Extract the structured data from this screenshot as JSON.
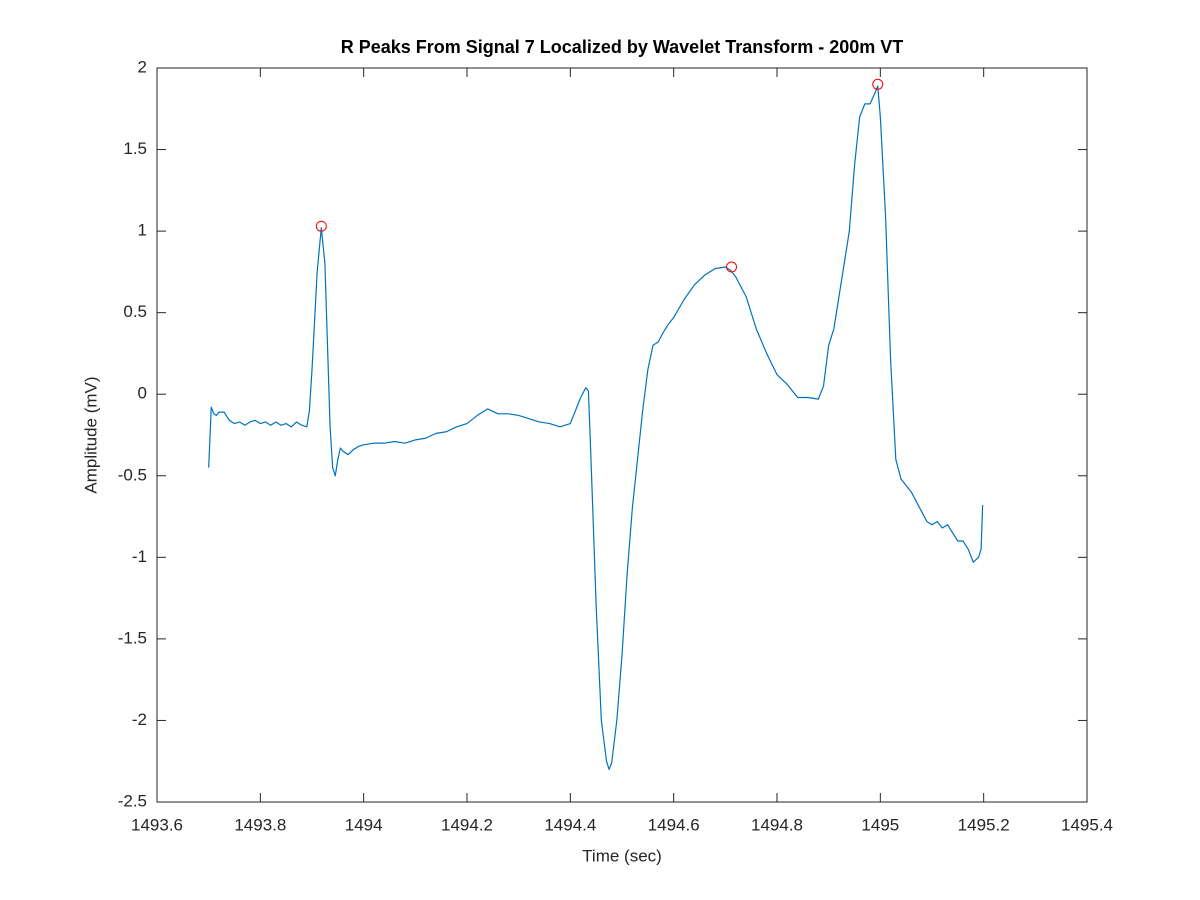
{
  "chart_data": {
    "type": "line",
    "title": "R Peaks From Signal 7 Localized by Wavelet Transform - 200m VT",
    "x_label": "Time (sec)",
    "y_label": "Amplitude (mV)",
    "xlim": [
      1493.6,
      1495.4
    ],
    "xticks": [
      1493.6,
      1493.8,
      1494,
      1494.2,
      1494.4,
      1494.6,
      1494.8,
      1495,
      1495.2,
      1495.4
    ],
    "ylim": [
      -2.5,
      2
    ],
    "yticks": [
      -2.5,
      -2,
      -1.5,
      -1,
      -0.5,
      0,
      0.5,
      1,
      1.5,
      2
    ],
    "grid": false,
    "series": [
      {
        "color": "#0072bd",
        "style": "line",
        "x": [
          1493.7,
          1493.705,
          1493.71,
          1493.715,
          1493.72,
          1493.73,
          1493.74,
          1493.75,
          1493.76,
          1493.77,
          1493.78,
          1493.79,
          1493.8,
          1493.81,
          1493.82,
          1493.83,
          1493.84,
          1493.85,
          1493.86,
          1493.87,
          1493.88,
          1493.89,
          1493.895,
          1493.9,
          1493.91,
          1493.918,
          1493.925,
          1493.93,
          1493.935,
          1493.94,
          1493.945,
          1493.95,
          1493.955,
          1493.96,
          1493.97,
          1493.98,
          1493.99,
          1494,
          1494.02,
          1494.04,
          1494.06,
          1494.08,
          1494.1,
          1494.12,
          1494.14,
          1494.16,
          1494.18,
          1494.2,
          1494.22,
          1494.24,
          1494.26,
          1494.28,
          1494.3,
          1494.32,
          1494.34,
          1494.36,
          1494.38,
          1494.4,
          1494.41,
          1494.42,
          1494.43,
          1494.435,
          1494.44,
          1494.45,
          1494.46,
          1494.47,
          1494.475,
          1494.48,
          1494.49,
          1494.5,
          1494.51,
          1494.52,
          1494.53,
          1494.54,
          1494.55,
          1494.56,
          1494.57,
          1494.58,
          1494.59,
          1494.6,
          1494.62,
          1494.64,
          1494.66,
          1494.68,
          1494.7,
          1494.71,
          1494.72,
          1494.74,
          1494.76,
          1494.78,
          1494.8,
          1494.82,
          1494.84,
          1494.86,
          1494.88,
          1494.89,
          1494.9,
          1494.91,
          1494.92,
          1494.93,
          1494.94,
          1494.95,
          1494.96,
          1494.97,
          1494.98,
          1494.99,
          1494.995,
          1495,
          1495.01,
          1495.02,
          1495.03,
          1495.04,
          1495.06,
          1495.08,
          1495.09,
          1495.1,
          1495.11,
          1495.12,
          1495.13,
          1495.14,
          1495.15,
          1495.16,
          1495.17,
          1495.18,
          1495.19,
          1495.195,
          1495.198
        ],
        "values": [
          -0.45,
          -0.08,
          -0.12,
          -0.13,
          -0.11,
          -0.11,
          -0.16,
          -0.18,
          -0.17,
          -0.19,
          -0.17,
          -0.16,
          -0.18,
          -0.17,
          -0.19,
          -0.17,
          -0.19,
          -0.18,
          -0.2,
          -0.17,
          -0.19,
          -0.2,
          -0.1,
          0.15,
          0.75,
          1.02,
          0.8,
          0.3,
          -0.2,
          -0.45,
          -0.5,
          -0.4,
          -0.33,
          -0.35,
          -0.37,
          -0.34,
          -0.32,
          -0.31,
          -0.3,
          -0.3,
          -0.29,
          -0.3,
          -0.28,
          -0.27,
          -0.24,
          -0.23,
          -0.2,
          -0.18,
          -0.13,
          -0.09,
          -0.12,
          -0.12,
          -0.13,
          -0.15,
          -0.17,
          -0.18,
          -0.2,
          -0.18,
          -0.1,
          -0.02,
          0.04,
          0.02,
          -0.4,
          -1.3,
          -2,
          -2.25,
          -2.3,
          -2.26,
          -2,
          -1.6,
          -1.1,
          -0.7,
          -0.4,
          -0.1,
          0.15,
          0.3,
          0.32,
          0.38,
          0.43,
          0.47,
          0.58,
          0.67,
          0.73,
          0.77,
          0.78,
          0.76,
          0.72,
          0.6,
          0.4,
          0.25,
          0.12,
          0.06,
          -0.02,
          -0.02,
          -0.03,
          0.05,
          0.3,
          0.4,
          0.6,
          0.8,
          1,
          1.4,
          1.7,
          1.78,
          1.78,
          1.85,
          1.89,
          1.7,
          1.1,
          0.2,
          -0.4,
          -0.52,
          -0.6,
          -0.72,
          -0.78,
          -0.8,
          -0.78,
          -0.82,
          -0.8,
          -0.85,
          -0.9,
          -0.9,
          -0.95,
          -1.03,
          -1,
          -0.95,
          -0.68
        ]
      },
      {
        "color": "#ff0000",
        "style": "circle",
        "x": [
          1493.918,
          1494.712,
          1494.995
        ],
        "values": [
          1.03,
          0.78,
          1.9
        ]
      }
    ]
  }
}
